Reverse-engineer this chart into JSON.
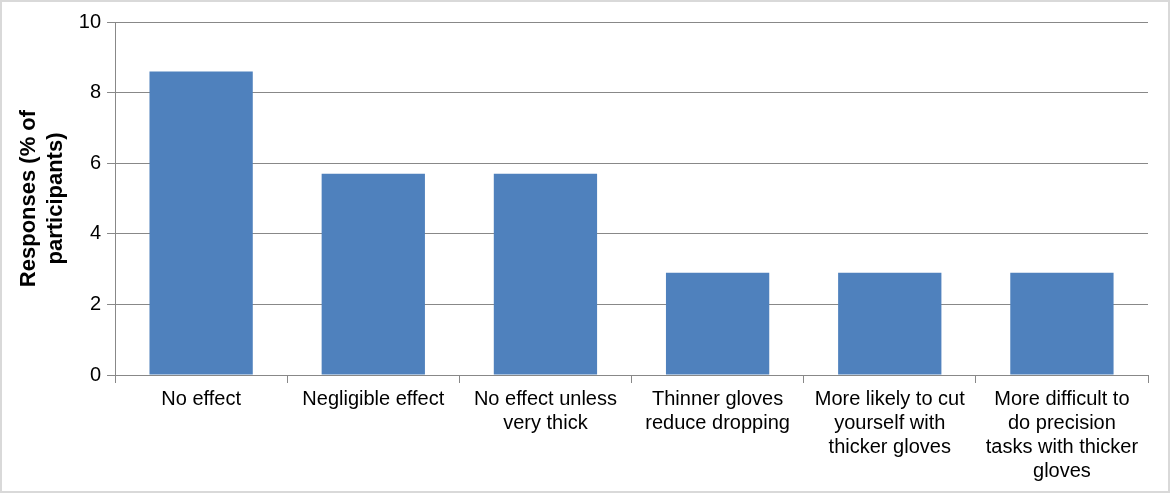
{
  "chart_data": {
    "type": "bar",
    "ylabel": "Responses (% of participants)",
    "categories": [
      "No effect",
      "Negligible effect",
      "No effect unless very thick",
      "Thinner gloves reduce dropping",
      "More likely to cut yourself with thicker gloves",
      "More difficult to do precision tasks with thicker gloves"
    ],
    "values": [
      8.6,
      5.7,
      5.7,
      2.9,
      2.9,
      2.9
    ],
    "color": "#4f81bd",
    "ylim": [
      0,
      10
    ],
    "yticks": [
      0,
      2,
      4,
      6,
      8,
      10
    ],
    "grid": "y",
    "legend": false
  }
}
